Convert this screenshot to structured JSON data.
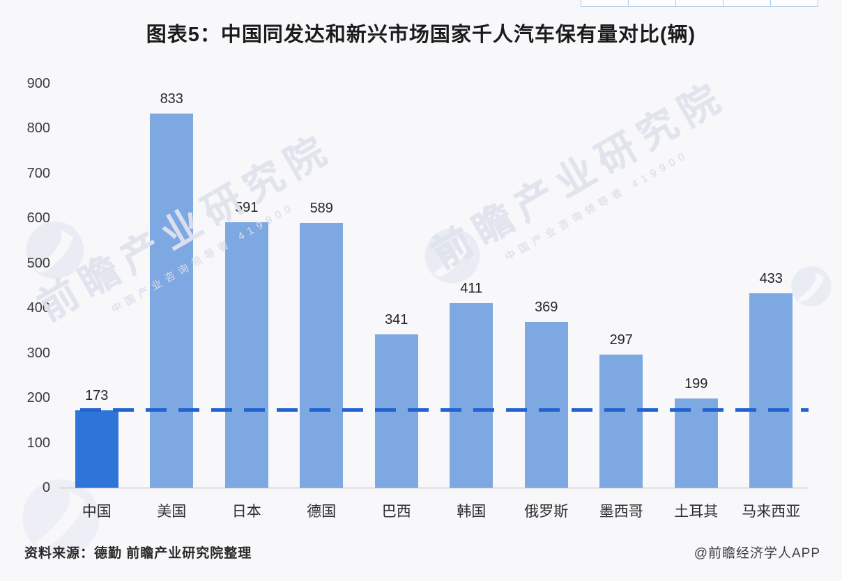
{
  "title": {
    "text": "图表5：中国同发达和新兴市场国家千人汽车保有量对比(辆)"
  },
  "chart_data": {
    "type": "bar",
    "title": "图表5：中国同发达和新兴市场国家千人汽车保有量对比(辆)",
    "categories": [
      "中国",
      "美国",
      "日本",
      "德国",
      "巴西",
      "韩国",
      "俄罗斯",
      "墨西哥",
      "土耳其",
      "马来西亚"
    ],
    "values": [
      173,
      833,
      591,
      589,
      341,
      411,
      369,
      297,
      199,
      433
    ],
    "xlabel": "",
    "ylabel": "",
    "ylim": [
      0,
      900
    ],
    "yticks": [
      0,
      100,
      200,
      300,
      400,
      500,
      600,
      700,
      800,
      900
    ],
    "grid": false,
    "legend": false,
    "bar_colors": {
      "highlight_index": 0,
      "highlight": "#2f74d8",
      "default": "#7ea8e2"
    },
    "reference_line": {
      "value": 173,
      "style": "dashed",
      "color": "#2263cf"
    }
  },
  "footer": {
    "source": "资料来源：德勤 前瞻产业研究院整理",
    "credit": "@前瞻经济学人APP"
  },
  "watermark": {
    "text": "前瞻产业研究院",
    "subtext": "中国产业咨询领导者 419900",
    "logo_icon": "qianzhan-swoosh-logo"
  },
  "top_table": {
    "cell_count": 5,
    "border_color": "#abcbe9"
  },
  "colors": {
    "background": "#f8f8fb",
    "bar_default": "#7ea8e2",
    "bar_highlight": "#2f74d8",
    "dashed_line": "#2263cf",
    "axis_line": "#b7b7bd",
    "text_dark": "#1b1b1b"
  }
}
